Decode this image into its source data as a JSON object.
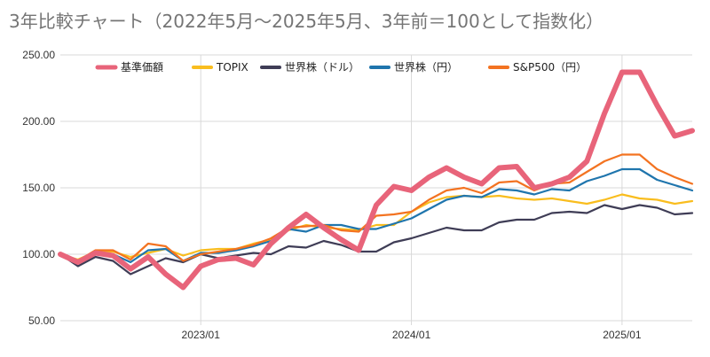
{
  "chart_data": {
    "type": "line",
    "title": "3年比較チャート（2022年5月〜2025年5月、3年前＝100として指数化）",
    "xlabel": "",
    "ylabel": "",
    "ylim": [
      50,
      250
    ],
    "y_ticks": [
      "250.00",
      "200.00",
      "150.00",
      "100.00",
      "50.00"
    ],
    "y_tick_values": [
      250,
      200,
      150,
      100,
      50
    ],
    "x_ticks": [
      "2023/01",
      "2024/01",
      "2025/01"
    ],
    "x_tick_values": [
      "2023/01",
      "2024/01",
      "2025/01"
    ],
    "grid": true,
    "legend_position": "top",
    "x": [
      "2022/05",
      "2022/06",
      "2022/07",
      "2022/08",
      "2022/09",
      "2022/10",
      "2022/11",
      "2022/12",
      "2023/01",
      "2023/02",
      "2023/03",
      "2023/04",
      "2023/05",
      "2023/06",
      "2023/07",
      "2023/08",
      "2023/09",
      "2023/10",
      "2023/11",
      "2023/12",
      "2024/01",
      "2024/02",
      "2024/03",
      "2024/04",
      "2024/05",
      "2024/06",
      "2024/07",
      "2024/08",
      "2024/09",
      "2024/10",
      "2024/11",
      "2024/12",
      "2025/01",
      "2025/02",
      "2025/03",
      "2025/04",
      "2025/05"
    ],
    "series": [
      {
        "name": "基準価額",
        "color": "#e8647a",
        "width": 6,
        "values": [
          100,
          94,
          101,
          99,
          89,
          98,
          85,
          75,
          91,
          96,
          97,
          92,
          108,
          120,
          130,
          120,
          111,
          103,
          137,
          151,
          148,
          158,
          165,
          158,
          153,
          165,
          166,
          150,
          153,
          158,
          170,
          206,
          237,
          237,
          212,
          189,
          193
        ]
      },
      {
        "name": "TOPIX",
        "color": "#f9bd1e",
        "width": 2.2,
        "values": [
          100,
          96,
          102,
          102,
          98,
          101,
          104,
          99,
          103,
          104,
          104,
          108,
          111,
          118,
          122,
          120,
          119,
          118,
          122,
          122,
          132,
          139,
          143,
          144,
          143,
          144,
          142,
          141,
          142,
          140,
          138,
          141,
          145,
          142,
          141,
          138,
          140
        ]
      },
      {
        "name": "世界株（ドル）",
        "color": "#3f3d56",
        "width": 2.2,
        "values": [
          100,
          91,
          98,
          95,
          85,
          91,
          97,
          94,
          100,
          97,
          99,
          101,
          100,
          106,
          105,
          110,
          107,
          102,
          102,
          109,
          112,
          116,
          120,
          118,
          118,
          124,
          126,
          126,
          131,
          132,
          131,
          137,
          134,
          137,
          135,
          130,
          131
        ]
      },
      {
        "name": "世界株（円）",
        "color": "#1f75ad",
        "width": 2.2,
        "values": [
          100,
          95,
          102,
          100,
          94,
          103,
          104,
          95,
          101,
          101,
          103,
          106,
          110,
          119,
          117,
          122,
          122,
          119,
          119,
          123,
          127,
          134,
          141,
          144,
          143,
          149,
          148,
          145,
          149,
          148,
          155,
          159,
          164,
          164,
          156,
          152,
          148
        ]
      },
      {
        "name": "S&P500（円）",
        "color": "#f37321",
        "width": 2.2,
        "values": [
          100,
          95,
          103,
          103,
          96,
          108,
          106,
          95,
          100,
          102,
          104,
          107,
          112,
          120,
          121,
          122,
          118,
          117,
          129,
          130,
          132,
          141,
          148,
          150,
          146,
          154,
          155,
          148,
          153,
          154,
          162,
          170,
          175,
          175,
          164,
          158,
          153
        ]
      }
    ]
  }
}
